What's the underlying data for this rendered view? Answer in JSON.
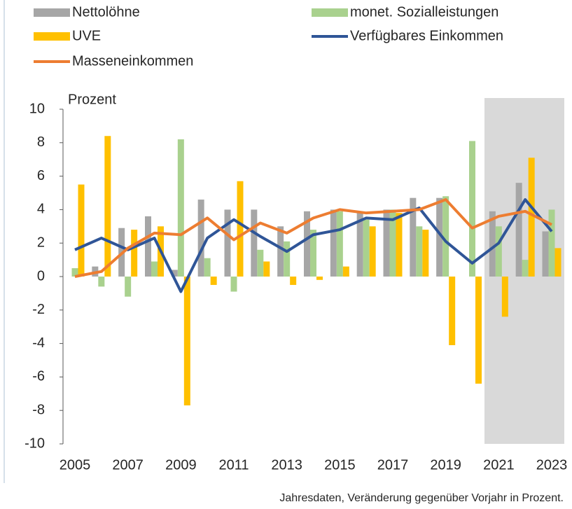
{
  "chart_data": {
    "type": "bar",
    "y_label": "Prozent",
    "note": "Jahresdaten, Veränderung gegenüber Vorjahr in Prozent.",
    "categories": [
      "2005",
      null,
      "2007",
      null,
      "2009",
      null,
      "2011",
      null,
      "2013",
      null,
      "2015",
      null,
      "2017",
      null,
      "2019",
      null,
      "2021",
      null,
      "2023"
    ],
    "series": [
      {
        "name": "Nettolöhne",
        "type": "bar",
        "color": "#a6a6a6",
        "values": [
          0.0,
          0.6,
          2.9,
          3.6,
          0.4,
          4.6,
          4.0,
          4.0,
          3.0,
          3.9,
          4.0,
          3.9,
          4.0,
          4.7,
          4.7,
          0.0,
          3.9,
          5.6,
          2.7
        ]
      },
      {
        "name": "monet. Sozialleistungen",
        "type": "bar",
        "color": "#a9d18e",
        "values": [
          0.5,
          -0.6,
          -1.2,
          0.9,
          8.2,
          1.1,
          -0.9,
          1.6,
          2.1,
          2.8,
          3.9,
          3.4,
          4.0,
          3.0,
          4.8,
          8.1,
          3.0,
          1.0,
          4.0
        ]
      },
      {
        "name": "UVE",
        "type": "bar",
        "color": "#ffc000",
        "values": [
          5.5,
          8.4,
          2.8,
          3.0,
          -7.7,
          -0.5,
          5.7,
          0.9,
          -0.5,
          -0.2,
          0.6,
          3.0,
          3.8,
          2.8,
          -4.1,
          -6.4,
          -2.4,
          7.1,
          1.7
        ]
      },
      {
        "name": "Verfügbares Einkommen",
        "type": "line",
        "color": "#2f5597",
        "values": [
          1.6,
          2.3,
          1.6,
          2.3,
          -0.9,
          2.3,
          3.4,
          2.4,
          1.5,
          2.5,
          2.8,
          3.5,
          3.4,
          4.1,
          2.1,
          0.8,
          2.0,
          4.6,
          2.7
        ]
      },
      {
        "name": "Masseneinkommen",
        "type": "line",
        "color": "#ed7d31",
        "values": [
          0.0,
          0.3,
          1.7,
          2.6,
          2.5,
          3.5,
          2.2,
          3.2,
          2.6,
          3.5,
          4.0,
          3.8,
          3.9,
          4.0,
          4.6,
          2.9,
          3.6,
          3.9,
          3.1
        ]
      }
    ],
    "ylim": [
      -10,
      10
    ],
    "yticks": [
      -10,
      -8,
      -6,
      -4,
      -2,
      0,
      2,
      4,
      6,
      8,
      10
    ]
  }
}
